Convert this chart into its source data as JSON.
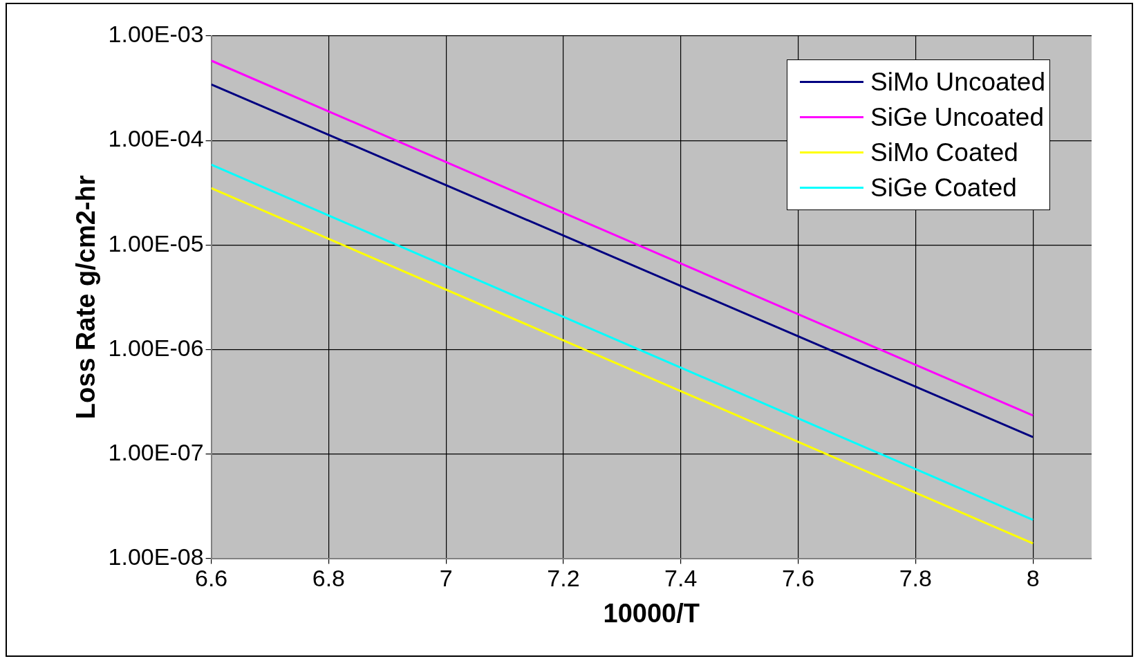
{
  "chart_data": {
    "type": "line",
    "xlabel": "10000/T",
    "ylabel": "Loss Rate g/cm2-hr",
    "x": [
      6.6,
      8
    ],
    "series": [
      {
        "name": "SiMo Uncoated",
        "color": "#000080",
        "values": [
          0.000344,
          1.45e-07
        ]
      },
      {
        "name": "SiGe Uncoated",
        "color": "#ff00ff",
        "values": [
          0.00058,
          2.33e-07
        ]
      },
      {
        "name": "SiMo Coated",
        "color": "#ffff00",
        "values": [
          3.5e-05,
          1.39e-08
        ]
      },
      {
        "name": "SiGe Coated",
        "color": "#00ffff",
        "values": [
          5.86e-05,
          2.34e-08
        ]
      }
    ],
    "log": "y",
    "xlim": [
      6.6,
      8.1
    ],
    "xticks": [
      6.6,
      6.8,
      7,
      7.2,
      7.4,
      7.6,
      7.8,
      8
    ],
    "ylim": [
      1e-08,
      0.001
    ],
    "yticks": [
      {
        "value": 1e-08,
        "label": "1.00E-08"
      },
      {
        "value": 1e-07,
        "label": "1.00E-07"
      },
      {
        "value": 1e-06,
        "label": "1.00E-06"
      },
      {
        "value": 1e-05,
        "label": "1.00E-05"
      },
      {
        "value": 0.0001,
        "label": "1.00E-04"
      },
      {
        "value": 0.001,
        "label": "1.00E-03"
      }
    ],
    "grid": true,
    "legend": "top right",
    "marker": "none",
    "line_style": "solid"
  }
}
